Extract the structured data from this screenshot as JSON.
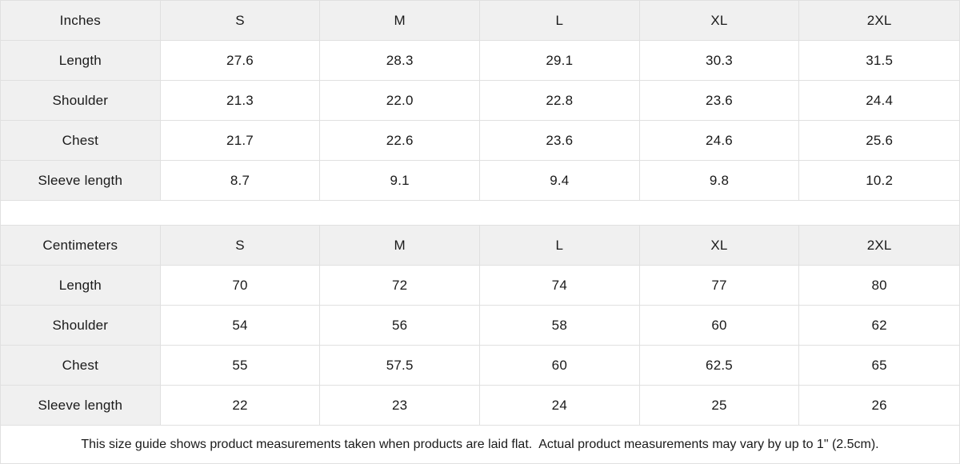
{
  "chart_data": [
    {
      "type": "table",
      "title": "Inches",
      "columns": [
        "Inches",
        "S",
        "M",
        "L",
        "XL",
        "2XL"
      ],
      "rows": [
        [
          "Length",
          "27.6",
          "28.3",
          "29.1",
          "30.3",
          "31.5"
        ],
        [
          "Shoulder",
          "21.3",
          "22.0",
          "22.8",
          "23.6",
          "24.4"
        ],
        [
          "Chest",
          "21.7",
          "22.6",
          "23.6",
          "24.6",
          "25.6"
        ],
        [
          "Sleeve length",
          "8.7",
          "9.1",
          "9.4",
          "9.8",
          "10.2"
        ]
      ]
    },
    {
      "type": "table",
      "title": "Centimeters",
      "columns": [
        "Centimeters",
        "S",
        "M",
        "L",
        "XL",
        "2XL"
      ],
      "rows": [
        [
          "Length",
          "70",
          "72",
          "74",
          "77",
          "80"
        ],
        [
          "Shoulder",
          "54",
          "56",
          "58",
          "60",
          "62"
        ],
        [
          "Chest",
          "55",
          "57.5",
          "60",
          "62.5",
          "65"
        ],
        [
          "Sleeve length",
          "22",
          "23",
          "24",
          "25",
          "26"
        ]
      ]
    }
  ],
  "footer": {
    "note": "This size guide shows product measurements taken when products are laid flat.  Actual product measurements may vary by up to 1\" (2.5cm)."
  },
  "colors": {
    "header_bg": "#f0f0f0",
    "row_label_bg": "#f0f0f0",
    "border": "#e0e0e0",
    "text": "#1a1a1a",
    "background": "#ffffff"
  }
}
